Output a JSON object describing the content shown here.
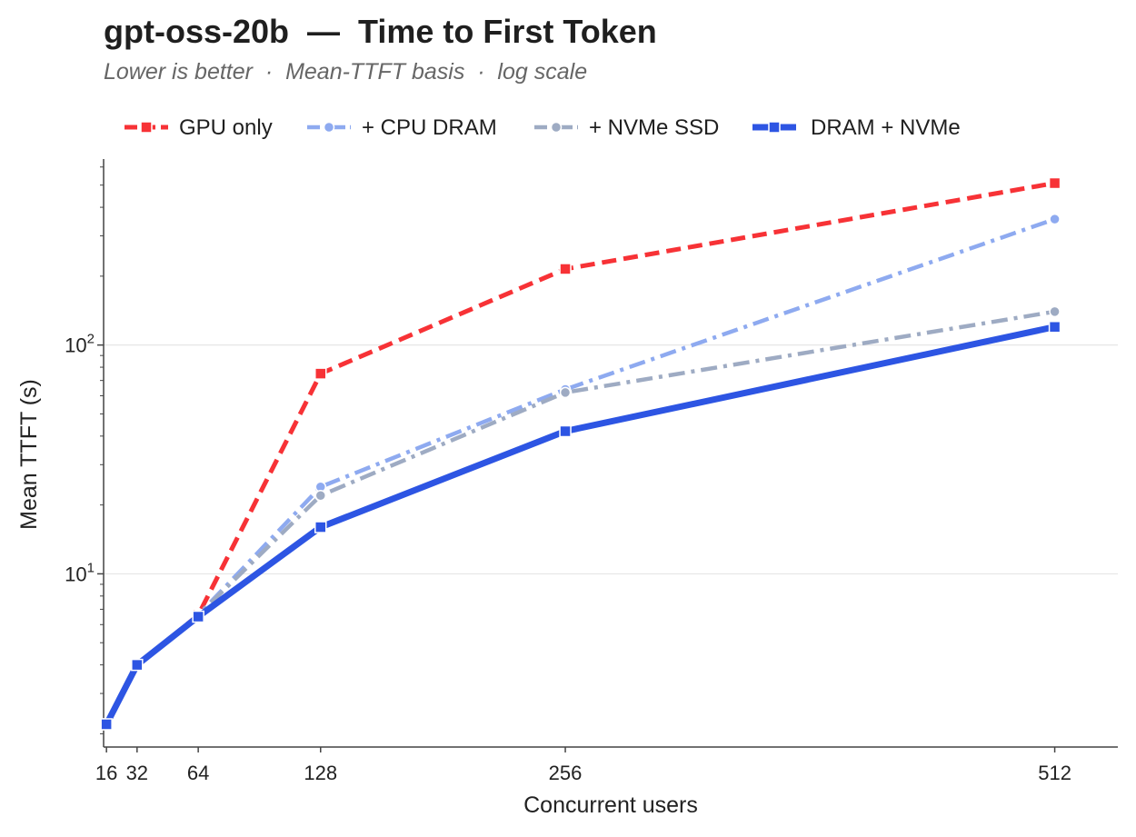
{
  "chart_data": {
    "type": "line",
    "title": "gpt-oss-20b  —  Time to First Token",
    "subtitle": "Lower is better  ·  Mean-TTFT basis  ·  log scale",
    "xlabel": "Concurrent users",
    "ylabel": "Mean TTFT (s)",
    "x": [
      16,
      32,
      64,
      128,
      256,
      512
    ],
    "x_tick_labels": [
      "16",
      "32",
      "64",
      "128",
      "256",
      "512"
    ],
    "y_scale": "log",
    "y_tick_labels": [
      {
        "value": 10,
        "base": "10",
        "exp": "1"
      },
      {
        "value": 100,
        "base": "10",
        "exp": "2"
      }
    ],
    "ylim": [
      1.75,
      650
    ],
    "xlim": [
      14.5,
      545
    ],
    "grid": "horizontal major",
    "legend_placement": "top, above plot",
    "series": [
      {
        "name": "GPU only",
        "values": [
          2.2,
          4.0,
          6.6,
          75,
          215,
          510
        ],
        "color": "#f73236",
        "dash": "dashed",
        "marker": "square",
        "width": 5
      },
      {
        "name": "+ CPU DRAM",
        "values": [
          2.2,
          4.0,
          6.6,
          24,
          64,
          355
        ],
        "color": "#8eaaf0",
        "dash": "dashdot",
        "marker": "circle",
        "width": 4.5
      },
      {
        "name": "+ NVMe SSD",
        "values": [
          2.2,
          4.0,
          6.6,
          22,
          62,
          140
        ],
        "color": "#9eabc3",
        "dash": "dashdot",
        "marker": "circle",
        "width": 4.5
      },
      {
        "name": "DRAM + NVMe",
        "values": [
          2.2,
          4.0,
          6.5,
          16,
          42,
          120
        ],
        "color": "#2d55e3",
        "dash": "solid",
        "marker": "square",
        "width": 7
      }
    ]
  }
}
